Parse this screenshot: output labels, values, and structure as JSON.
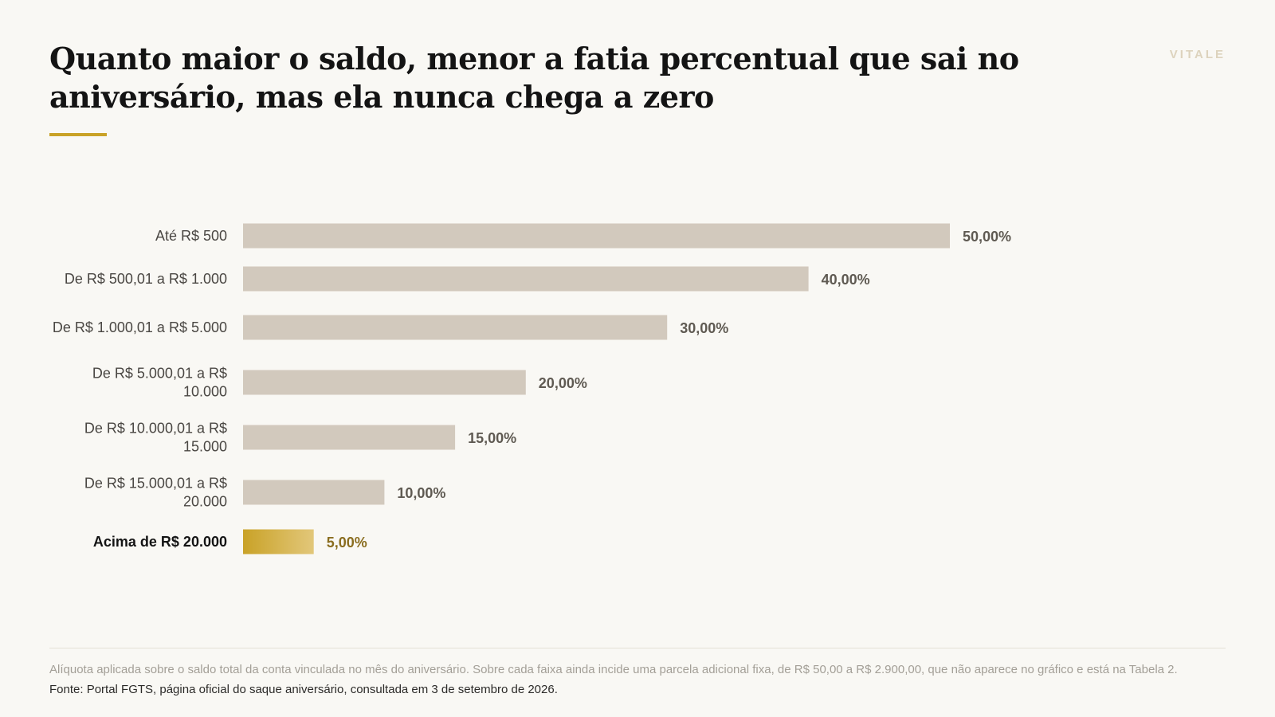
{
  "header": {
    "title": "Quanto maior o saldo, menor a fatia percentual que sai no aniversário, mas ela nunca chega a zero",
    "brand": "VITALE"
  },
  "colors": {
    "background": "#f9f8f4",
    "bar": "#d2c9bd",
    "highlight_start": "#c9a227",
    "highlight_end": "#e2c77a",
    "highlight_label": "#8a6d1f",
    "value_label": "#5f5a52",
    "category_label": "#4a4743"
  },
  "chart_data": {
    "type": "bar",
    "orientation": "horizontal",
    "categories": [
      "Até R$ 500",
      "De R$ 500,01 a R$ 1.000",
      "De R$ 1.000,01 a R$ 5.000",
      "De R$ 5.000,01 a R$ 10.000",
      "De R$ 10.000,01 a R$ 15.000",
      "De R$ 15.000,01 a R$ 20.000",
      "Acima de R$ 20.000"
    ],
    "values": [
      50,
      40,
      30,
      20,
      15,
      10,
      5
    ],
    "value_labels": [
      "50,00%",
      "40,00%",
      "30,00%",
      "20,00%",
      "15,00%",
      "10,00%",
      "5,00%"
    ],
    "highlight_category": "Acima de R$ 20.000",
    "xlim": [
      0,
      50
    ],
    "grid": false,
    "legend": false
  },
  "footer": {
    "note": "Alíquota aplicada sobre o saldo total da conta vinculada no mês do aniversário. Sobre cada faixa ainda incide uma parcela adicional fixa, de R$ 50,00 a R$ 2.900,00, que não aparece no gráfico e está na Tabela 2.",
    "source": "Fonte: Portal FGTS, página oficial do saque aniversário, consultada em 3 de setembro de 2026."
  }
}
